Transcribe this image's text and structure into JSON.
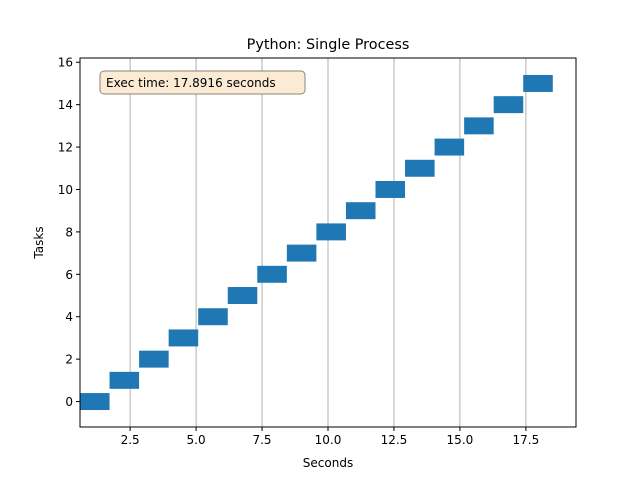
{
  "chart_data": {
    "type": "broken_barh",
    "title": "Python: Single Process",
    "xlabel": "Seconds",
    "ylabel": "Tasks",
    "xlim": [
      0.6,
      19.4
    ],
    "ylim": [
      -1.2,
      16.2
    ],
    "xticks": [
      2.5,
      5.0,
      7.5,
      10.0,
      12.5,
      15.0,
      17.5
    ],
    "xtick_labels": [
      "2.5",
      "5.0",
      "7.5",
      "10.0",
      "12.5",
      "15.0",
      "17.5"
    ],
    "yticks": [
      0,
      2,
      4,
      6,
      8,
      10,
      12,
      14,
      16
    ],
    "ytick_labels": [
      "0",
      "2",
      "4",
      "6",
      "8",
      "10",
      "12",
      "14",
      "16"
    ],
    "grid": "x",
    "bar_color": "#1f77b4",
    "bar_height": 0.8,
    "tasks": [
      {
        "task": 0,
        "start": 0.6,
        "end": 1.72
      },
      {
        "task": 1,
        "start": 1.72,
        "end": 2.84
      },
      {
        "task": 2,
        "start": 2.84,
        "end": 3.96
      },
      {
        "task": 3,
        "start": 3.96,
        "end": 5.08
      },
      {
        "task": 4,
        "start": 5.08,
        "end": 6.2
      },
      {
        "task": 5,
        "start": 6.2,
        "end": 7.32
      },
      {
        "task": 6,
        "start": 7.32,
        "end": 8.44
      },
      {
        "task": 7,
        "start": 8.44,
        "end": 9.56
      },
      {
        "task": 8,
        "start": 9.56,
        "end": 10.68
      },
      {
        "task": 9,
        "start": 10.68,
        "end": 11.8
      },
      {
        "task": 10,
        "start": 11.8,
        "end": 12.92
      },
      {
        "task": 11,
        "start": 12.92,
        "end": 14.04
      },
      {
        "task": 12,
        "start": 14.04,
        "end": 15.16
      },
      {
        "task": 13,
        "start": 15.16,
        "end": 16.28
      },
      {
        "task": 14,
        "start": 16.28,
        "end": 17.4
      },
      {
        "task": 15,
        "start": 17.4,
        "end": 18.52
      }
    ],
    "annotation": {
      "text": "Exec time: 17.8916 seconds",
      "position": "top-left",
      "box_fill": "#fbebd5",
      "box_stroke": "#8c8377"
    }
  }
}
